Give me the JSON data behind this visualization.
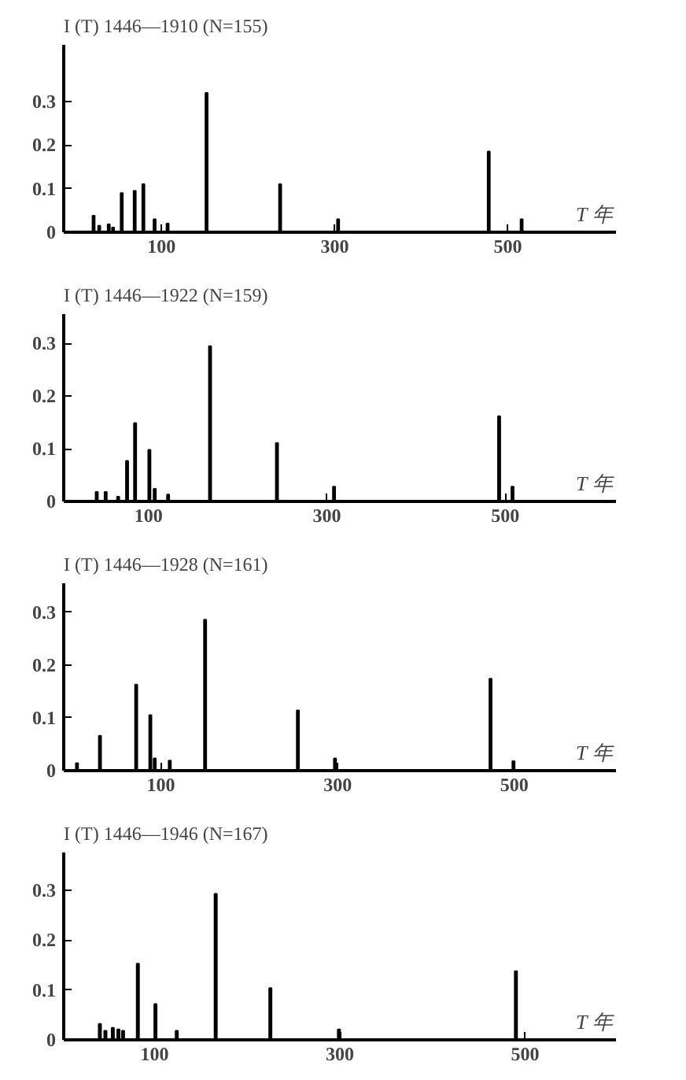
{
  "chart_data": [
    {
      "type": "bar",
      "title": "I (T) 1446—1910 (N=155)",
      "xlabel": "T 年",
      "x": [
        21.5,
        28,
        39,
        44,
        54,
        69,
        79,
        92,
        107,
        152,
        237,
        304,
        478,
        516
      ],
      "series": [
        {
          "color": "#000000",
          "values": [
            0.038,
            0.015,
            0.018,
            0.011,
            0.09,
            0.095,
            0.11,
            0.03,
            0.02,
            0.32,
            0.11,
            0.03,
            0.185,
            0.03
          ]
        }
      ],
      "xlim": [
        -13,
        625
      ],
      "ylim": [
        0,
        0.43
      ],
      "xticks": [
        100,
        300,
        500
      ],
      "yticks": [
        0,
        0.1,
        0.2,
        0.3
      ],
      "grid": false
    },
    {
      "type": "bar",
      "title": "I (T) 1446—1922 (N=159)",
      "xlabel": "T 年",
      "x": [
        42,
        52,
        66,
        76,
        85,
        101,
        107,
        122,
        169,
        244,
        308,
        493,
        508
      ],
      "series": [
        {
          "color": "#000000",
          "values": [
            0.018,
            0.018,
            0.009,
            0.077,
            0.149,
            0.098,
            0.024,
            0.013,
            0.295,
            0.111,
            0.028,
            0.162,
            0.028
          ]
        }
      ],
      "xlim": [
        5,
        624
      ],
      "ylim": [
        0,
        0.356
      ],
      "xticks": [
        100,
        300,
        500
      ],
      "yticks": [
        0,
        0.1,
        0.2,
        0.3
      ],
      "grid": false
    },
    {
      "type": "bar",
      "title": "I (T) 1446—1928 (N=161)",
      "xlabel": "T 年",
      "x": [
        5,
        31,
        72,
        88,
        93,
        110,
        150,
        255,
        297,
        473,
        499
      ],
      "series": [
        {
          "color": "#000000",
          "values": [
            0.014,
            0.066,
            0.163,
            0.105,
            0.023,
            0.019,
            0.286,
            0.114,
            0.023,
            0.174,
            0.018
          ]
        }
      ],
      "xlim": [
        -10,
        615
      ],
      "ylim": [
        0,
        0.355
      ],
      "xticks": [
        100,
        300,
        500
      ],
      "yticks": [
        0,
        0.1,
        0.2,
        0.3
      ],
      "grid": false
    },
    {
      "type": "bar",
      "title": "I (T) 1446—1946 (N=167)",
      "xlabel": "T 年",
      "x": [
        41,
        47,
        55,
        61,
        66,
        82,
        101,
        124,
        166,
        225,
        299,
        490
      ],
      "series": [
        {
          "color": "#000000",
          "values": [
            0.032,
            0.018,
            0.024,
            0.021,
            0.018,
            0.153,
            0.072,
            0.018,
            0.293,
            0.104,
            0.021,
            0.138
          ]
        }
      ],
      "xlim": [
        2,
        598
      ],
      "ylim": [
        0,
        0.376
      ],
      "xticks": [
        100,
        300,
        500
      ],
      "yticks": [
        0,
        0.1,
        0.2,
        0.3
      ],
      "grid": false
    }
  ]
}
